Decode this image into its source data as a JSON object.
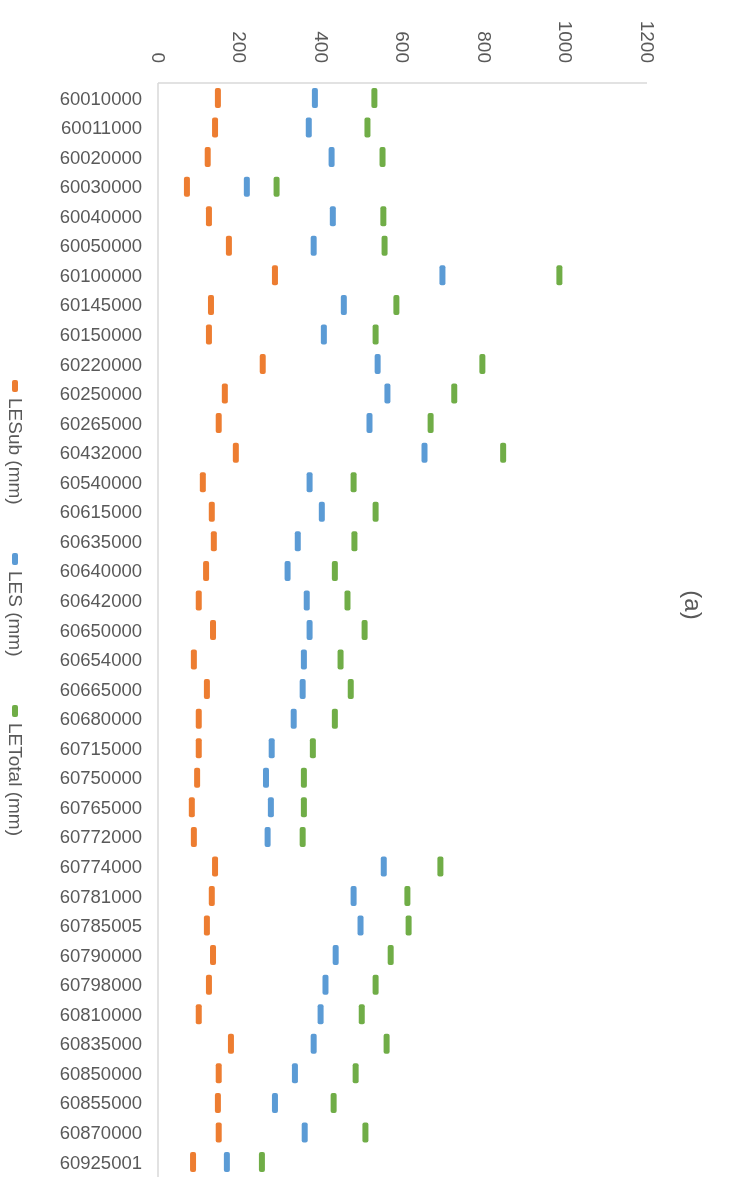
{
  "chart_data": {
    "type": "scatter",
    "title": "(a)",
    "orientation": "horizontal",
    "legend": "left",
    "categories": [
      "60010000",
      "60011000",
      "60020000",
      "60030000",
      "60040000",
      "60050000",
      "60100000",
      "60145000",
      "60150000",
      "60220000",
      "60250000",
      "60265000",
      "60432000",
      "60540000",
      "60615000",
      "60635000",
      "60640000",
      "60642000",
      "60650000",
      "60654000",
      "60665000",
      "60680000",
      "60715000",
      "60750000",
      "60765000",
      "60772000",
      "60774000",
      "60781000",
      "60785005",
      "60790000",
      "60798000",
      "60810000",
      "60835000",
      "60850000",
      "60855000",
      "60870000",
      "60925001"
    ],
    "series": [
      {
        "name": "LESub (mm)",
        "color": "#ed7d31",
        "values": [
          147,
          140,
          122,
          71,
          125,
          174,
          287,
          130,
          125,
          257,
          164,
          149,
          191,
          110,
          132,
          137,
          118,
          100,
          135,
          88,
          120,
          100,
          100,
          96,
          83,
          88,
          140,
          132,
          120,
          135,
          125,
          100,
          179,
          149,
          147,
          149,
          86
        ]
      },
      {
        "name": "LES (mm)",
        "color": "#5b9bd5",
        "values": [
          385,
          370,
          426,
          218,
          429,
          382,
          698,
          456,
          407,
          539,
          563,
          519,
          654,
          372,
          402,
          343,
          318,
          365,
          372,
          358,
          355,
          333,
          279,
          265,
          277,
          269,
          554,
          480,
          497,
          436,
          411,
          399,
          382,
          336,
          287,
          360,
          169
        ]
      },
      {
        "name": "LETotal (mm)",
        "color": "#70ad47",
        "values": [
          531,
          514,
          551,
          291,
          553,
          556,
          985,
          585,
          534,
          796,
          727,
          669,
          847,
          480,
          534,
          482,
          434,
          465,
          507,
          448,
          473,
          434,
          380,
          358,
          358,
          355,
          693,
          612,
          615,
          571,
          534,
          500,
          561,
          485,
          431,
          509,
          255
        ]
      }
    ],
    "xlim": [
      0,
      1200
    ],
    "xticks": [
      0,
      200,
      400,
      600,
      800,
      1000,
      1200
    ]
  }
}
